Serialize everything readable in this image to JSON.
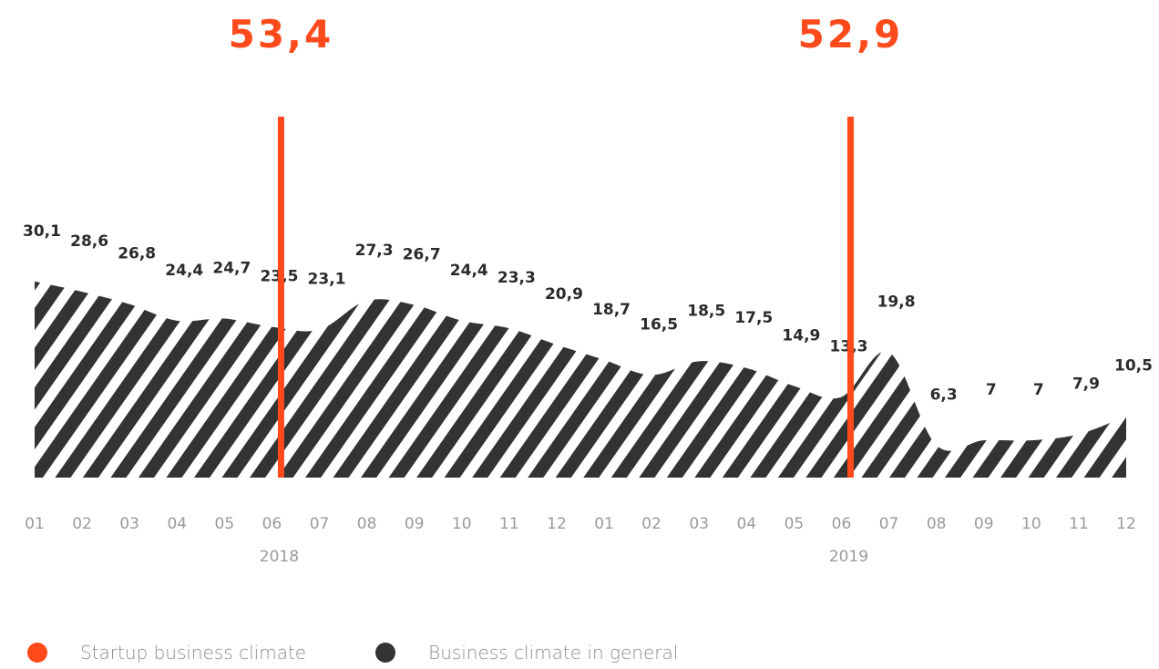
{
  "chart_data": {
    "type": "area",
    "x": [
      "01",
      "02",
      "03",
      "04",
      "05",
      "06",
      "07",
      "08",
      "09",
      "10",
      "11",
      "12",
      "01",
      "02",
      "03",
      "04",
      "05",
      "06",
      "07",
      "08",
      "09",
      "10",
      "11",
      "12"
    ],
    "years": [
      "2018",
      "2019"
    ],
    "series": [
      {
        "name": "Business climate in general",
        "values": [
          30.1,
          28.6,
          26.8,
          24.4,
          24.7,
          23.5,
          23.1,
          27.3,
          26.7,
          24.4,
          23.3,
          20.9,
          18.7,
          16.5,
          18.5,
          17.5,
          14.9,
          13.3,
          19.8,
          6.3,
          7,
          7,
          7.9,
          10.5
        ],
        "labels": [
          "30,1",
          "28,6",
          "26,8",
          "24,4",
          "24,7",
          "23,5",
          "23,1",
          "27,3",
          "26,7",
          "24,4",
          "23,3",
          "20,9",
          "18,7",
          "16,5",
          "18,5",
          "17,5",
          "14,9",
          "13,3",
          "19,8",
          "6,3",
          "7",
          "7",
          "7,9",
          "10,5"
        ]
      },
      {
        "name": "Startup business climate",
        "points": [
          {
            "x": "06",
            "year": "2018",
            "value": 53.4,
            "label": "53,4"
          },
          {
            "x": "06",
            "year": "2019",
            "value": 52.9,
            "label": "52,9"
          }
        ]
      }
    ],
    "ylim": [
      0,
      60
    ],
    "grid": false,
    "legend_position": "bottom-left"
  },
  "colors": {
    "startup": "#ff4a1c",
    "general": "#333333",
    "tick": "#9a9a9a"
  },
  "legend": {
    "startup_label": "Startup business climate",
    "general_label": "Business climate in general"
  }
}
